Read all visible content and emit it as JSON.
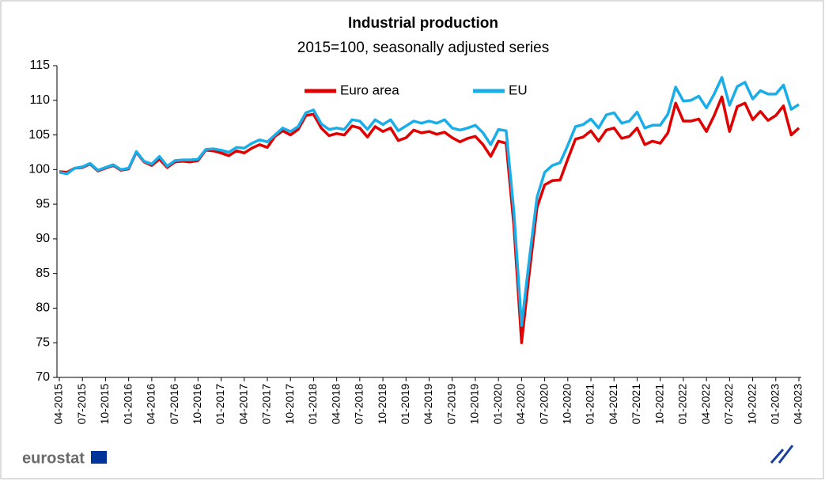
{
  "chart_data": {
    "type": "line",
    "title": "Industrial production",
    "subtitle": "2015=100, seasonally adjusted series",
    "source": "eurostat",
    "categories": [
      "04-2015",
      null,
      null,
      "07-2015",
      null,
      null,
      "10-2015",
      null,
      null,
      "01-2016",
      null,
      null,
      "04-2016",
      null,
      null,
      "07-2016",
      null,
      null,
      "10-2016",
      null,
      null,
      "01-2017",
      null,
      null,
      "04-2017",
      null,
      null,
      "07-2017",
      null,
      null,
      "10-2017",
      null,
      null,
      "01-2018",
      null,
      null,
      "04-2018",
      null,
      null,
      "07-2018",
      null,
      null,
      "10-2018",
      null,
      null,
      "01-2019",
      null,
      null,
      "04-2019",
      null,
      null,
      "07-2019",
      null,
      null,
      "10-2019",
      null,
      null,
      "01-2020",
      null,
      null,
      "04-2020",
      null,
      null,
      "07-2020",
      null,
      null,
      "10-2020",
      null,
      null,
      "01-2021",
      null,
      null,
      "04-2021",
      null,
      null,
      "07-2021",
      null,
      null,
      "10-2021",
      null,
      null,
      "01-2022",
      null,
      null,
      "04-2022",
      null,
      null,
      "07-2022",
      null,
      null,
      "10-2022",
      null,
      null,
      "01-2023",
      null,
      null,
      "04-2023"
    ],
    "series": [
      {
        "name": "Euro area",
        "color": "#e00000",
        "values": [
          99.7,
          99.6,
          100.2,
          100.3,
          100.8,
          99.8,
          100.2,
          100.6,
          99.9,
          100.1,
          102.5,
          101.1,
          100.6,
          101.5,
          100.3,
          101.1,
          101.2,
          101.1,
          101.3,
          102.8,
          102.7,
          102.4,
          102.0,
          102.7,
          102.4,
          103.1,
          103.6,
          103.2,
          104.8,
          105.6,
          105.0,
          105.8,
          107.8,
          108.0,
          106.0,
          104.9,
          105.2,
          105.0,
          106.3,
          106.0,
          104.7,
          106.2,
          105.5,
          106.0,
          104.2,
          104.6,
          105.7,
          105.3,
          105.5,
          105.1,
          105.4,
          104.6,
          104.0,
          104.5,
          104.8,
          103.6,
          101.9,
          104.1,
          103.8,
          92,
          75,
          85,
          94.5,
          97.8,
          98.4,
          98.5,
          101.5,
          104.4,
          104.7,
          105.6,
          104.1,
          105.7,
          106.0,
          104.5,
          104.8,
          106.0,
          103.6,
          104.1,
          103.8,
          105.3,
          109.6,
          107.0,
          107.0,
          107.3,
          105.5,
          107.8,
          110.5,
          105.5,
          109.1,
          109.6,
          107.2,
          108.4,
          107.1,
          107.8,
          109.2,
          105.0,
          106.0
        ]
      },
      {
        "name": "EU",
        "color": "#1aaee8",
        "values": [
          99.6,
          99.4,
          100.2,
          100.4,
          100.9,
          99.9,
          100.3,
          100.7,
          100.0,
          100.2,
          102.6,
          101.2,
          100.8,
          101.9,
          100.5,
          101.3,
          101.4,
          101.4,
          101.5,
          102.9,
          103.0,
          102.8,
          102.5,
          103.2,
          103.1,
          103.8,
          104.3,
          104.0,
          105.0,
          106.0,
          105.5,
          106.2,
          108.2,
          108.6,
          106.6,
          105.8,
          106.0,
          105.8,
          107.2,
          107.0,
          105.8,
          107.2,
          106.5,
          107.2,
          105.6,
          106.3,
          107.0,
          106.7,
          107.0,
          106.7,
          107.2,
          106.0,
          105.7,
          106.0,
          106.4,
          105.3,
          103.6,
          105.8,
          105.6,
          94,
          77.5,
          87,
          96,
          99.6,
          100.6,
          101.0,
          103.5,
          106.2,
          106.5,
          107.3,
          106.0,
          107.9,
          108.2,
          106.7,
          107.0,
          108.3,
          106.0,
          106.4,
          106.4,
          108.0,
          111.9,
          109.9,
          110.0,
          110.6,
          108.9,
          110.9,
          113.3,
          109.3,
          112.0,
          112.6,
          110.2,
          111.4,
          110.9,
          110.9,
          112.2,
          108.7,
          109.4
        ]
      }
    ],
    "ylim": [
      70,
      115
    ],
    "yticks": [
      70,
      75,
      80,
      85,
      90,
      95,
      100,
      105,
      110,
      115
    ],
    "grid": false,
    "legend": "top"
  }
}
